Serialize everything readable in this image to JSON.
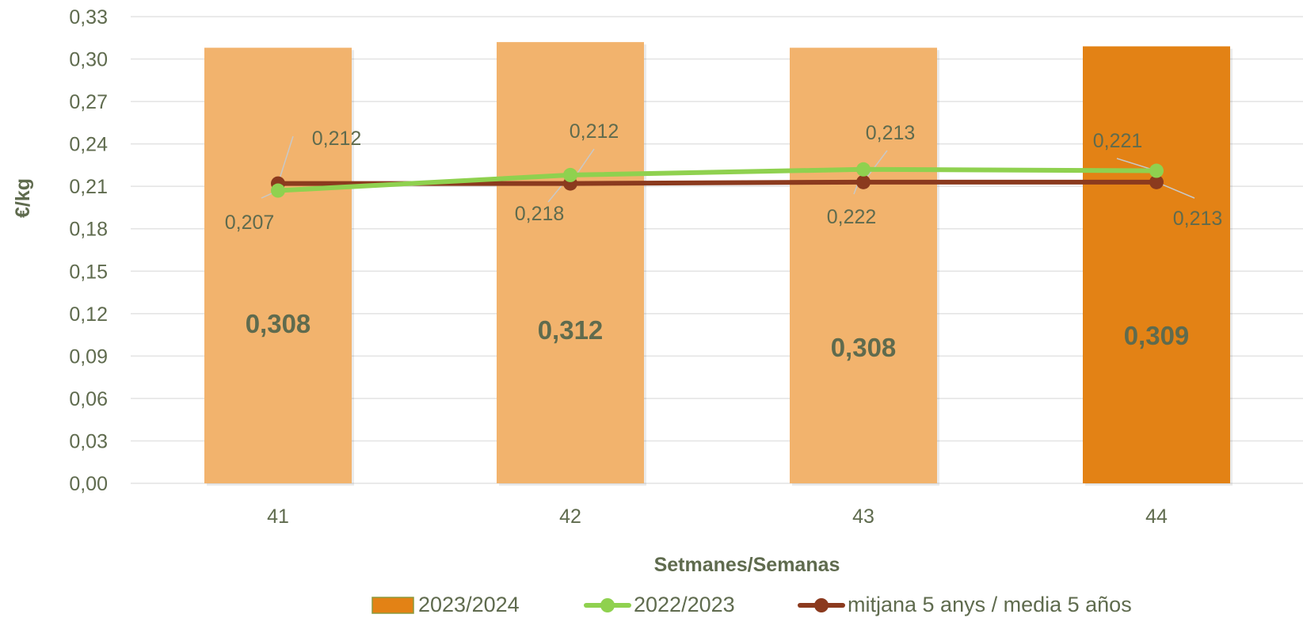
{
  "chart_data": {
    "type": "bar",
    "categories": [
      "41",
      "42",
      "43",
      "44"
    ],
    "xlabel": "Setmanes/Semanas",
    "ylabel": "€/kg",
    "ylim": [
      0,
      0.33
    ],
    "y_ticks": [
      "0,00",
      "0,03",
      "0,06",
      "0,09",
      "0,12",
      "0,15",
      "0,18",
      "0,21",
      "0,24",
      "0,27",
      "0,30",
      "0,33"
    ],
    "grid": true,
    "legend_position": "bottom",
    "bar_series": {
      "name": "2023/2024",
      "values": [
        0.308,
        0.312,
        0.308,
        0.309
      ],
      "labels": [
        "0,308",
        "0,312",
        "0,308",
        "0,309"
      ],
      "color": "#f2b36d",
      "highlight_color": "#e38215",
      "highlight_index": 3
    },
    "line_series": [
      {
        "name": "2022/2023",
        "values": [
          0.207,
          0.218,
          0.222,
          0.221
        ],
        "labels": [
          "0,207",
          "0,218",
          "0,222",
          "0,221"
        ],
        "color": "#8fd14f"
      },
      {
        "name": "mitjana 5 anys / media 5 años",
        "values": [
          0.212,
          0.212,
          0.213,
          0.213
        ],
        "labels": [
          "0,212",
          "0,212",
          "0,213",
          "0,213"
        ],
        "color": "#8b3a1e"
      }
    ]
  }
}
